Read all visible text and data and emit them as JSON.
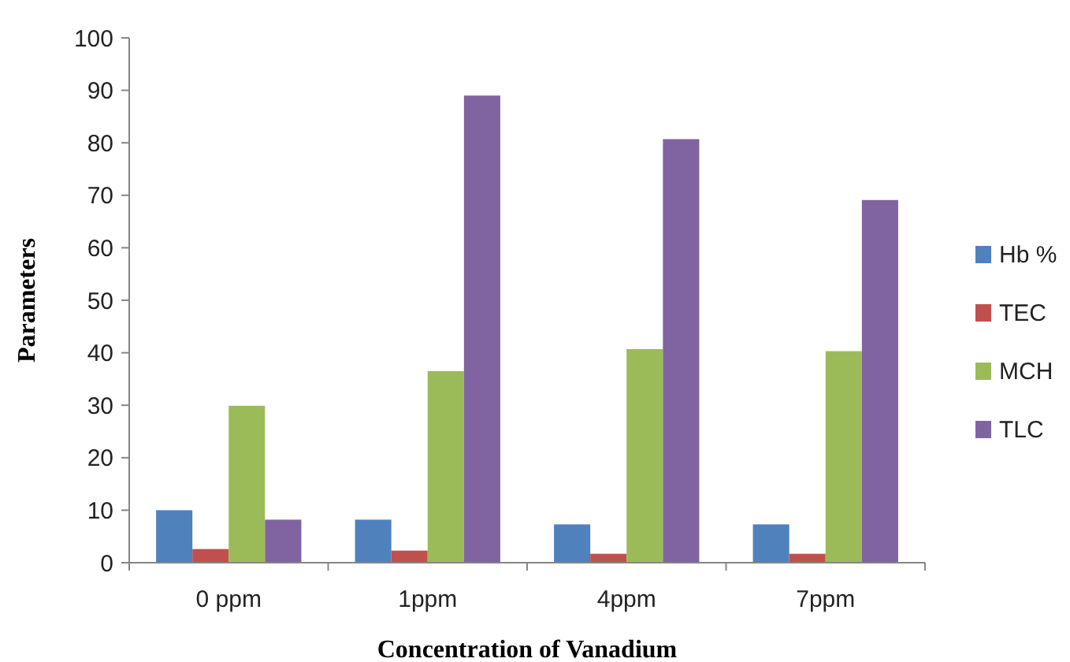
{
  "chart_data": {
    "type": "bar",
    "xlabel": "Concentration of Vanadium",
    "ylabel": "Parameters",
    "categories": [
      "0 ppm",
      "1ppm",
      "4ppm",
      "7ppm"
    ],
    "series": [
      {
        "name": "Hb %",
        "color": "#4f81bd",
        "values": [
          10.0,
          8.2,
          7.3,
          7.3
        ]
      },
      {
        "name": "TEC",
        "color": "#c0504d",
        "values": [
          2.6,
          2.3,
          1.7,
          1.7
        ]
      },
      {
        "name": "MCH",
        "color": "#9bbb59",
        "values": [
          29.9,
          36.5,
          40.7,
          40.3
        ]
      },
      {
        "name": "TLC",
        "color": "#8064a2",
        "values": [
          8.2,
          89.0,
          80.7,
          69.1
        ]
      }
    ],
    "ylim": [
      0,
      100
    ],
    "yticks": [
      0,
      10,
      20,
      30,
      40,
      50,
      60,
      70,
      80,
      90,
      100
    ],
    "grid": false,
    "legend": "right"
  }
}
